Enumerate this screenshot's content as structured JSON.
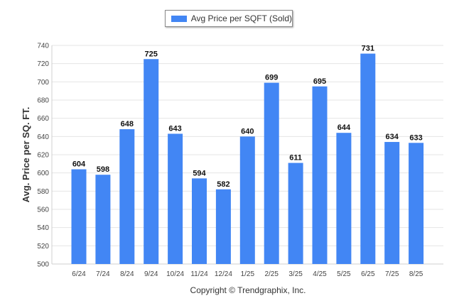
{
  "chart_data": {
    "type": "bar",
    "title": "",
    "xlabel": "",
    "ylabel": "Avg. Price per SQ. FT.",
    "categories": [
      "6/24",
      "7/24",
      "8/24",
      "9/24",
      "10/24",
      "11/24",
      "12/24",
      "1/25",
      "2/25",
      "3/25",
      "4/25",
      "5/25",
      "6/25",
      "7/25",
      "8/25"
    ],
    "series": [
      {
        "name": "Avg Price per SQFT (Sold)",
        "values": [
          604,
          598,
          648,
          725,
          643,
          594,
          582,
          640,
          699,
          611,
          695,
          644,
          731,
          634,
          633
        ]
      }
    ],
    "ylim": [
      500,
      740
    ],
    "yticks": [
      500,
      520,
      540,
      560,
      580,
      600,
      620,
      640,
      660,
      680,
      700,
      720,
      740
    ],
    "grid": true,
    "legend_position": "top-center",
    "bar_color": "#4286f4",
    "footer": "Copyright © Trendgraphix, Inc."
  }
}
